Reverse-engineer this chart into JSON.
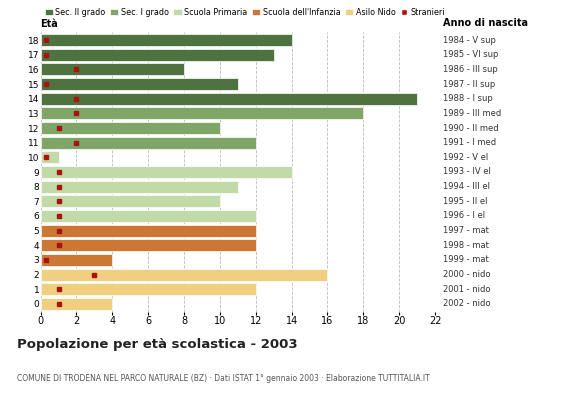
{
  "ages": [
    18,
    17,
    16,
    15,
    14,
    13,
    12,
    11,
    10,
    9,
    8,
    7,
    6,
    5,
    4,
    3,
    2,
    1,
    0
  ],
  "years": [
    "1984 - V sup",
    "1985 - VI sup",
    "1986 - III sup",
    "1987 - II sup",
    "1988 - I sup",
    "1989 - III med",
    "1990 - II med",
    "1991 - I med",
    "1992 - V el",
    "1993 - IV el",
    "1994 - III el",
    "1995 - II el",
    "1996 - I el",
    "1997 - mat",
    "1998 - mat",
    "1999 - mat",
    "2000 - nido",
    "2001 - nido",
    "2002 - nido"
  ],
  "bar_values": [
    14,
    13,
    8,
    11,
    21,
    18,
    10,
    12,
    1,
    14,
    11,
    10,
    12,
    12,
    12,
    4,
    16,
    12,
    4
  ],
  "stranieri": [
    0.3,
    0.3,
    2,
    0.3,
    2,
    2,
    1,
    2,
    0.3,
    1,
    1,
    1,
    1,
    1,
    1,
    0.3,
    3,
    1,
    1
  ],
  "categories": {
    "Sec. II grado": {
      "ages": [
        18,
        17,
        16,
        15,
        14
      ],
      "color": "#4e7340"
    },
    "Sec. I grado": {
      "ages": [
        13,
        12,
        11
      ],
      "color": "#7fa666"
    },
    "Scuola Primaria": {
      "ages": [
        10,
        9,
        8,
        7,
        6
      ],
      "color": "#c2d9a8"
    },
    "Scuola dell'Infanzia": {
      "ages": [
        5,
        4,
        3
      ],
      "color": "#cc7733"
    },
    "Asilo Nido": {
      "ages": [
        2,
        1,
        0
      ],
      "color": "#f0d080"
    }
  },
  "stranieri_color": "#aa1111",
  "title": "Popolazione per età scolastica - 2003",
  "subtitle": "COMUNE DI TRODENA NEL PARCO NATURALE (BZ) · Dati ISTAT 1° gennaio 2003 · Elaborazione TUTTITALIA.IT",
  "xlabel_left": "Età",
  "xlabel_right": "Anno di nascita",
  "xlim": [
    0,
    22
  ],
  "grid_color": "#bbbbbb",
  "bg_color": "#ffffff",
  "legend_colors": [
    "#4e7340",
    "#7fa666",
    "#c2d9a8",
    "#cc7733",
    "#f0d080",
    "#aa1111"
  ],
  "legend_labels": [
    "Sec. II grado",
    "Sec. I grado",
    "Scuola Primaria",
    "Scuola dell'Infanzia",
    "Asilo Nido",
    "Stranieri"
  ]
}
